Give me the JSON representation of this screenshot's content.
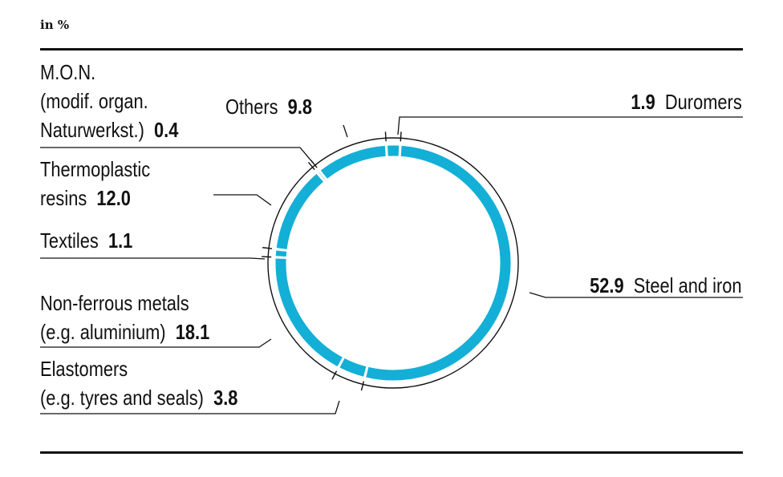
{
  "header": {
    "unit": "in %"
  },
  "colors": {
    "ring": "#13afd6",
    "line": "#111111"
  },
  "chart_data": {
    "type": "pie",
    "variant": "ring",
    "categories": [
      "Steel and iron",
      "Elastomers (e.g. tyres and seals)",
      "Non-ferrous metals (e.g. aluminium)",
      "Textiles",
      "Thermoplastic resins",
      "M.O.N. (modif. organ. Naturwerkst.)",
      "Others",
      "Duromers"
    ],
    "values": [
      52.9,
      3.8,
      18.1,
      1.1,
      12.0,
      0.4,
      9.8,
      1.9
    ],
    "labels": [
      {
        "name": "Steel and iron",
        "lines": [
          "Steel and iron"
        ],
        "value": "52.9"
      },
      {
        "name": "Elastomers",
        "lines": [
          "Elastomers",
          "(e.g. tyres and seals)"
        ],
        "value": "3.8"
      },
      {
        "name": "Non-ferrous metals",
        "lines": [
          "Non-ferrous metals",
          "(e.g. aluminium)"
        ],
        "value": "18.1"
      },
      {
        "name": "Textiles",
        "lines": [
          "Textiles"
        ],
        "value": "1.1"
      },
      {
        "name": "Thermoplastic resins",
        "lines": [
          "Thermoplastic",
          "resins"
        ],
        "value": "12.0"
      },
      {
        "name": "M.O.N.",
        "lines": [
          "M.O.N.",
          "(modif. organ.",
          "Naturwerkst.)"
        ],
        "value": "0.4"
      },
      {
        "name": "Others",
        "lines": [
          "Others"
        ],
        "value": "9.8"
      },
      {
        "name": "Duromers",
        "lines": [
          "Duromers"
        ],
        "value": "1.9"
      }
    ]
  }
}
